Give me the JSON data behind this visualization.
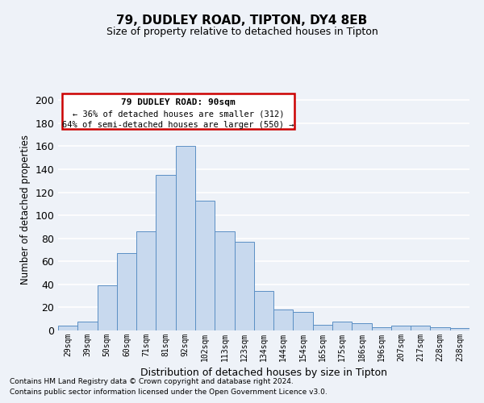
{
  "title1": "79, DUDLEY ROAD, TIPTON, DY4 8EB",
  "title2": "Size of property relative to detached houses in Tipton",
  "xlabel": "Distribution of detached houses by size in Tipton",
  "ylabel": "Number of detached properties",
  "bar_color": "#c8d9ee",
  "bar_edge_color": "#5b8fc4",
  "categories": [
    "29sqm",
    "39sqm",
    "50sqm",
    "60sqm",
    "71sqm",
    "81sqm",
    "92sqm",
    "102sqm",
    "113sqm",
    "123sqm",
    "134sqm",
    "144sqm",
    "154sqm",
    "165sqm",
    "175sqm",
    "186sqm",
    "196sqm",
    "207sqm",
    "217sqm",
    "228sqm",
    "238sqm"
  ],
  "values": [
    4,
    8,
    39,
    67,
    86,
    135,
    160,
    113,
    86,
    77,
    34,
    18,
    16,
    5,
    8,
    6,
    3,
    4,
    4,
    3,
    2
  ],
  "ylim": [
    0,
    210
  ],
  "yticks": [
    0,
    20,
    40,
    60,
    80,
    100,
    120,
    140,
    160,
    180,
    200
  ],
  "annotation_title": "79 DUDLEY ROAD: 90sqm",
  "annotation_line1": "← 36% of detached houses are smaller (312)",
  "annotation_line2": "64% of semi-detached houses are larger (550) →",
  "box_color": "#ffffff",
  "box_edge_color": "#cc0000",
  "footnote1": "Contains HM Land Registry data © Crown copyright and database right 2024.",
  "footnote2": "Contains public sector information licensed under the Open Government Licence v3.0.",
  "background_color": "#eef2f8",
  "grid_color": "#ffffff"
}
